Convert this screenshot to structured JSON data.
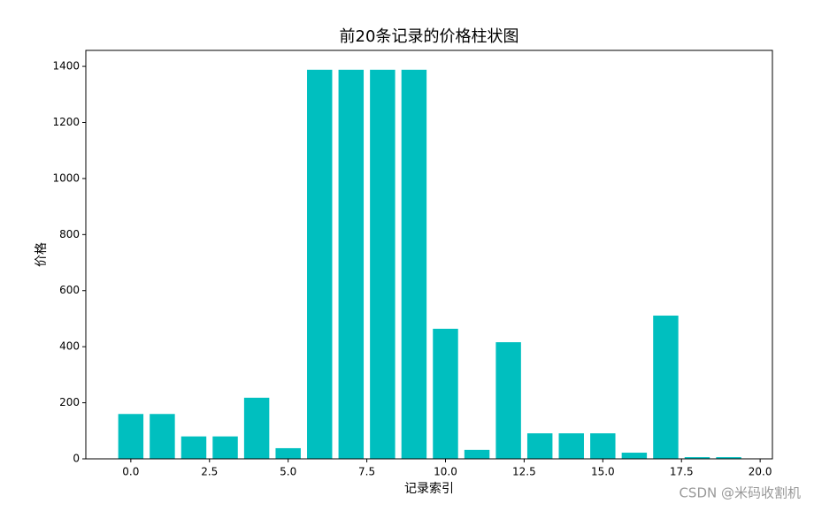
{
  "chart_data": {
    "type": "bar",
    "title": "前20条记录的价格柱状图",
    "x_label": "记录索引",
    "y_label": "价格",
    "x": [
      0,
      1,
      2,
      3,
      4,
      5,
      6,
      7,
      8,
      9,
      10,
      11,
      12,
      13,
      14,
      15,
      16,
      17,
      18,
      19
    ],
    "values": [
      160,
      160,
      80,
      80,
      218,
      38,
      1388,
      1388,
      1388,
      1388,
      464,
      32,
      416,
      91,
      91,
      91,
      22,
      511,
      6,
      6
    ],
    "color": "#00bfbf",
    "bar_width": 0.8,
    "xlim": [
      -1.43,
      20.39
    ],
    "xticks": [
      {
        "value": 0,
        "label": "0.0"
      },
      2.5,
      {
        "value": 5,
        "label": "5.0"
      },
      7.5,
      {
        "value": 10,
        "label": "10.0"
      },
      12.5,
      {
        "value": 15,
        "label": "15.0"
      },
      17.5,
      {
        "value": 20,
        "label": "20.0"
      }
    ],
    "ylim": [
      0,
      1457
    ],
    "yticks": [
      0,
      200,
      400,
      600,
      800,
      1000,
      1200,
      1400
    ],
    "grid": false,
    "watermark": "CSDN @米码收割机"
  }
}
